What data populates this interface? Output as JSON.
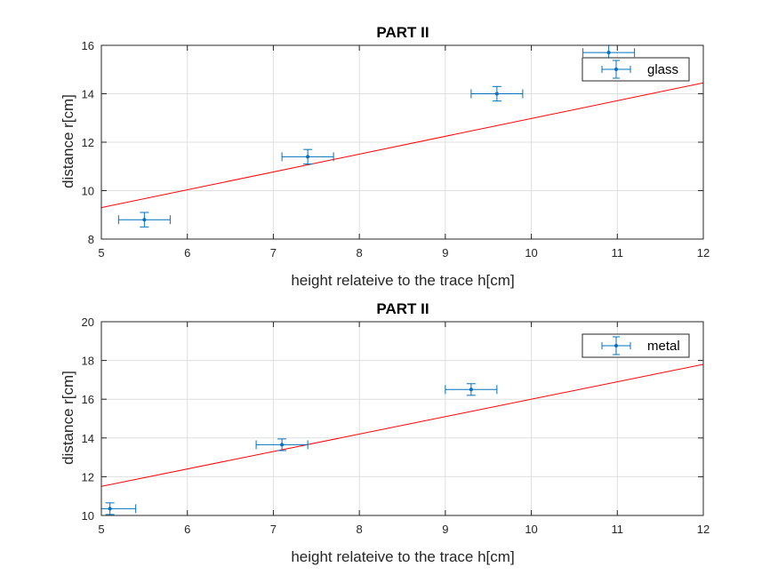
{
  "chart_data": [
    {
      "type": "scatter",
      "title": "PART II",
      "xlabel": "height relateive to the trace h[cm]",
      "ylabel": "distance r[cm]",
      "xlim": [
        5,
        12
      ],
      "ylim": [
        8,
        16
      ],
      "xticks": [
        5,
        6,
        7,
        8,
        9,
        10,
        11,
        12
      ],
      "yticks": [
        8,
        10,
        12,
        14,
        16
      ],
      "grid": true,
      "legend_position": "top-right",
      "colors": {
        "series": "#0072BD",
        "fit": "#FF0000"
      },
      "series": [
        {
          "name": "glass",
          "x": [
            5.5,
            7.4,
            9.6,
            10.9
          ],
          "y": [
            8.8,
            11.4,
            14.0,
            15.7
          ],
          "xerr": [
            0.3,
            0.3,
            0.3,
            0.3
          ],
          "yerr": [
            0.3,
            0.3,
            0.3,
            0.3
          ]
        }
      ],
      "fit_line": {
        "x": [
          5,
          12
        ],
        "y": [
          9.3,
          14.45
        ]
      }
    },
    {
      "type": "scatter",
      "title": "PART II",
      "xlabel": "height relateive to the trace h[cm]",
      "ylabel": "distance r[cm]",
      "xlim": [
        5,
        12
      ],
      "ylim": [
        10,
        20
      ],
      "xticks": [
        5,
        6,
        7,
        8,
        9,
        10,
        11,
        12
      ],
      "yticks": [
        10,
        12,
        14,
        16,
        18,
        20
      ],
      "grid": true,
      "legend_position": "top-right",
      "colors": {
        "series": "#0072BD",
        "fit": "#FF0000"
      },
      "series": [
        {
          "name": "metal",
          "x": [
            5.1,
            7.1,
            9.3
          ],
          "y": [
            10.35,
            13.65,
            16.5
          ],
          "xerr": [
            0.3,
            0.3,
            0.3
          ],
          "yerr": [
            0.3,
            0.3,
            0.3
          ]
        }
      ],
      "fit_line": {
        "x": [
          5,
          12
        ],
        "y": [
          11.5,
          17.8
        ]
      }
    }
  ]
}
